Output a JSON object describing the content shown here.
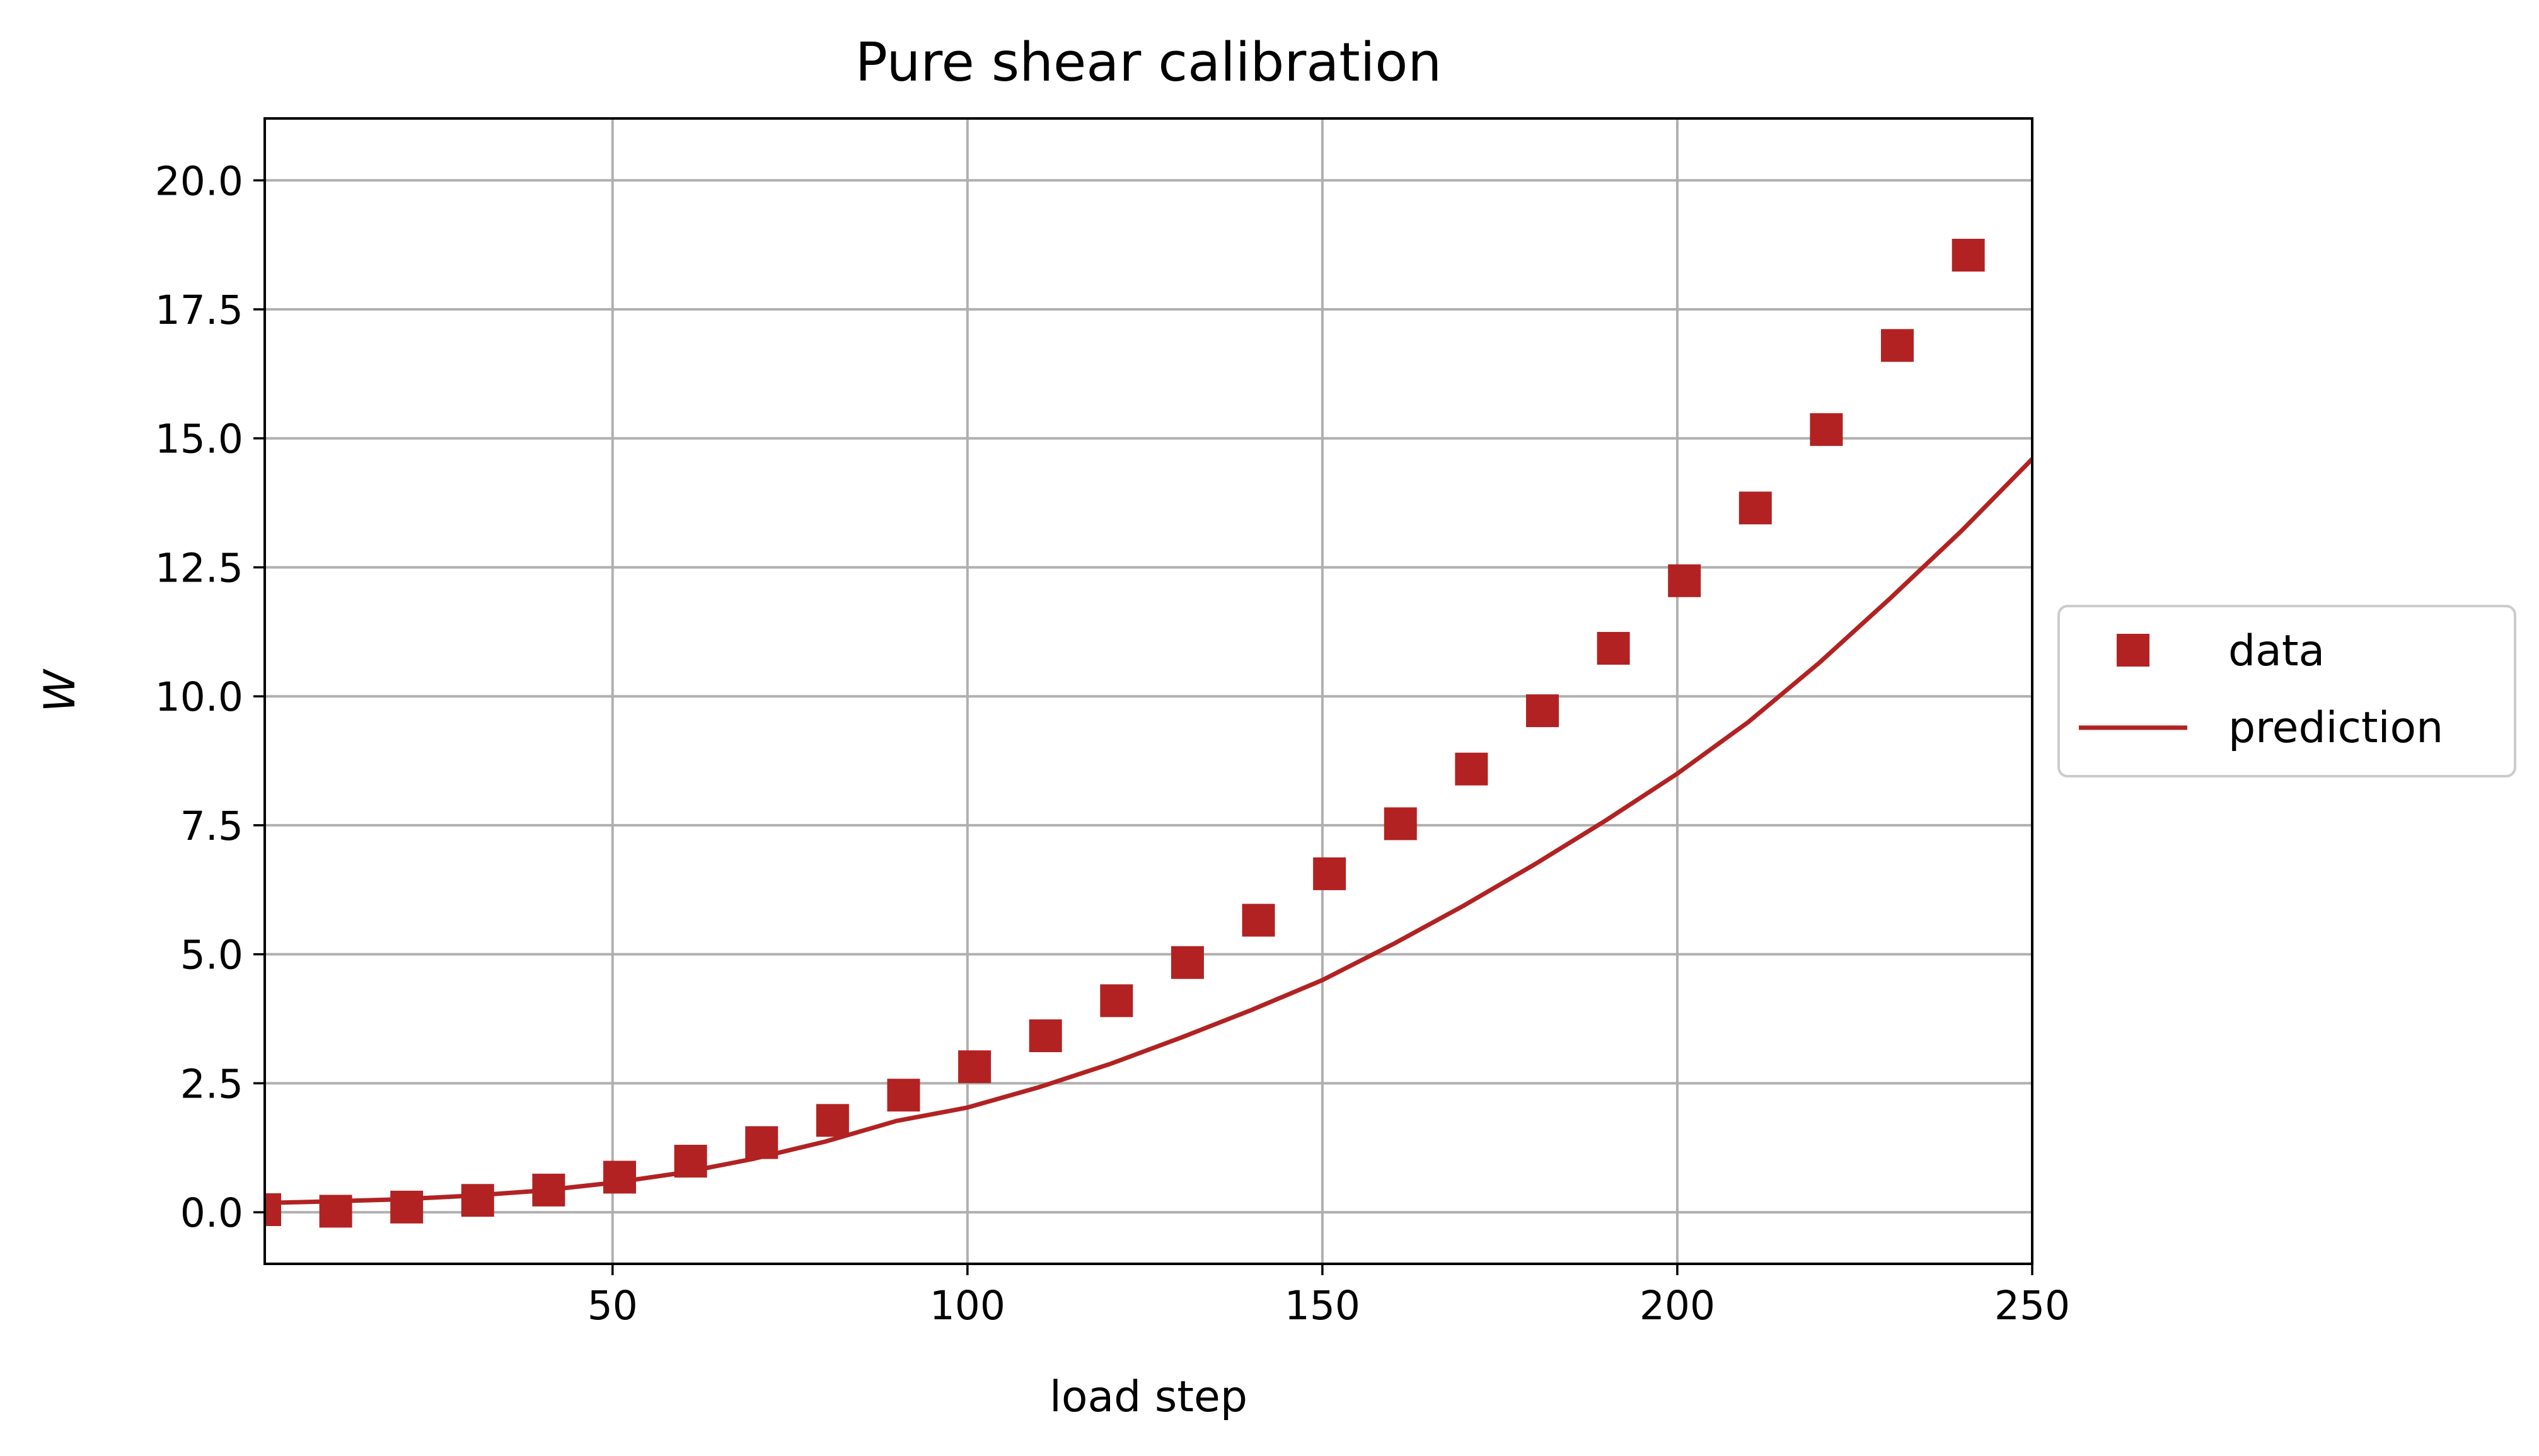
{
  "chart_data": {
    "type": "scatter",
    "title": "Pure shear calibration",
    "xlabel": "load step",
    "ylabel": "W",
    "xlim": [
      1,
      250
    ],
    "ylim": [
      -1.0,
      21.2
    ],
    "x_ticks": [
      50,
      100,
      150,
      200,
      250
    ],
    "y_ticks": [
      0.0,
      2.5,
      5.0,
      7.5,
      10.0,
      12.5,
      15.0,
      17.5,
      20.0
    ],
    "x_tick_labels": [
      "50",
      "100",
      "150",
      "200",
      "250"
    ],
    "y_tick_labels": [
      "0.0",
      "2.5",
      "5.0",
      "7.5",
      "10.0",
      "12.5",
      "15.0",
      "17.5",
      "20.0"
    ],
    "grid": true,
    "legend_position": "outside-right",
    "colors": {
      "data": "#b22222",
      "prediction": "#b22222",
      "grid": "#b0b0b0"
    },
    "series": [
      {
        "name": "data",
        "kind": "scatter",
        "marker": "square",
        "x": [
          1,
          11,
          21,
          31,
          41,
          51,
          61,
          71,
          81,
          91,
          101,
          111,
          121,
          131,
          141,
          151,
          161,
          171,
          181,
          191,
          201,
          211,
          221,
          231,
          241
        ],
        "y": [
          0.05,
          0.02,
          0.1,
          0.23,
          0.43,
          0.68,
          0.99,
          1.35,
          1.78,
          2.27,
          2.82,
          3.42,
          4.1,
          4.84,
          5.66,
          6.56,
          7.53,
          8.59,
          9.72,
          10.93,
          12.24,
          13.65,
          15.17,
          16.8,
          18.55
        ]
      },
      {
        "name": "prediction",
        "kind": "line",
        "x": [
          1,
          10,
          20,
          30,
          40,
          50,
          60,
          70,
          80,
          90,
          100,
          110,
          120,
          130,
          140,
          150,
          160,
          170,
          180,
          190,
          200,
          210,
          220,
          230,
          240,
          250
        ],
        "y": [
          0.18,
          0.21,
          0.25,
          0.32,
          0.42,
          0.57,
          0.77,
          1.04,
          1.37,
          1.77,
          2.03,
          2.42,
          2.87,
          3.38,
          3.92,
          4.5,
          5.2,
          5.95,
          6.75,
          7.6,
          8.5,
          9.5,
          10.65,
          11.9,
          13.2,
          14.6
        ]
      }
    ]
  }
}
